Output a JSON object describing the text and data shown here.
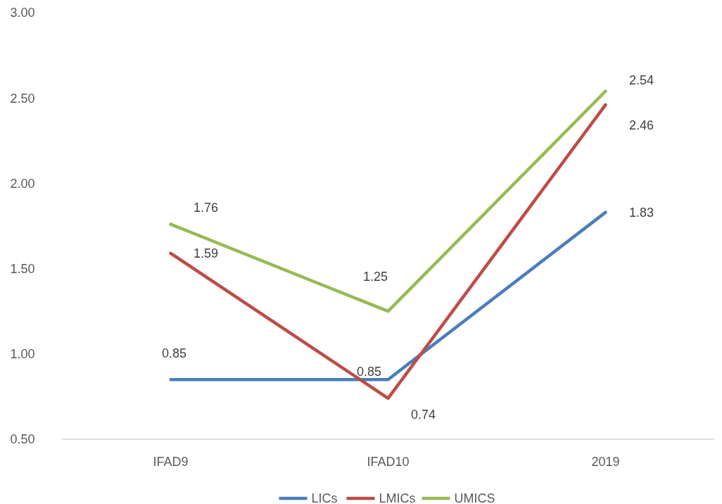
{
  "chart_data": {
    "type": "line",
    "categories": [
      "IFAD9",
      "IFAD10",
      "2019"
    ],
    "series": [
      {
        "name": "LICs",
        "color": "#4a7ebb",
        "values": [
          0.85,
          0.85,
          1.83
        ]
      },
      {
        "name": "LMICs",
        "color": "#be4b48",
        "values": [
          1.59,
          0.74,
          2.46
        ]
      },
      {
        "name": "UMICS",
        "color": "#98b954",
        "values": [
          1.76,
          1.25,
          2.54
        ]
      }
    ],
    "ylim": [
      0.5,
      3.0
    ],
    "yticks": [
      {
        "value": 0.5,
        "label": "0.50"
      },
      {
        "value": 1,
        "label": "1.00"
      },
      {
        "value": 1.5,
        "label": "1.50"
      },
      {
        "value": 2,
        "label": "2.00"
      },
      {
        "value": 2.5,
        "label": "2.50"
      },
      {
        "value": 3,
        "label": "3.00"
      }
    ],
    "data_labels": true,
    "legend": "bottom",
    "grid": false,
    "marker": "none",
    "line_style": "solid"
  }
}
